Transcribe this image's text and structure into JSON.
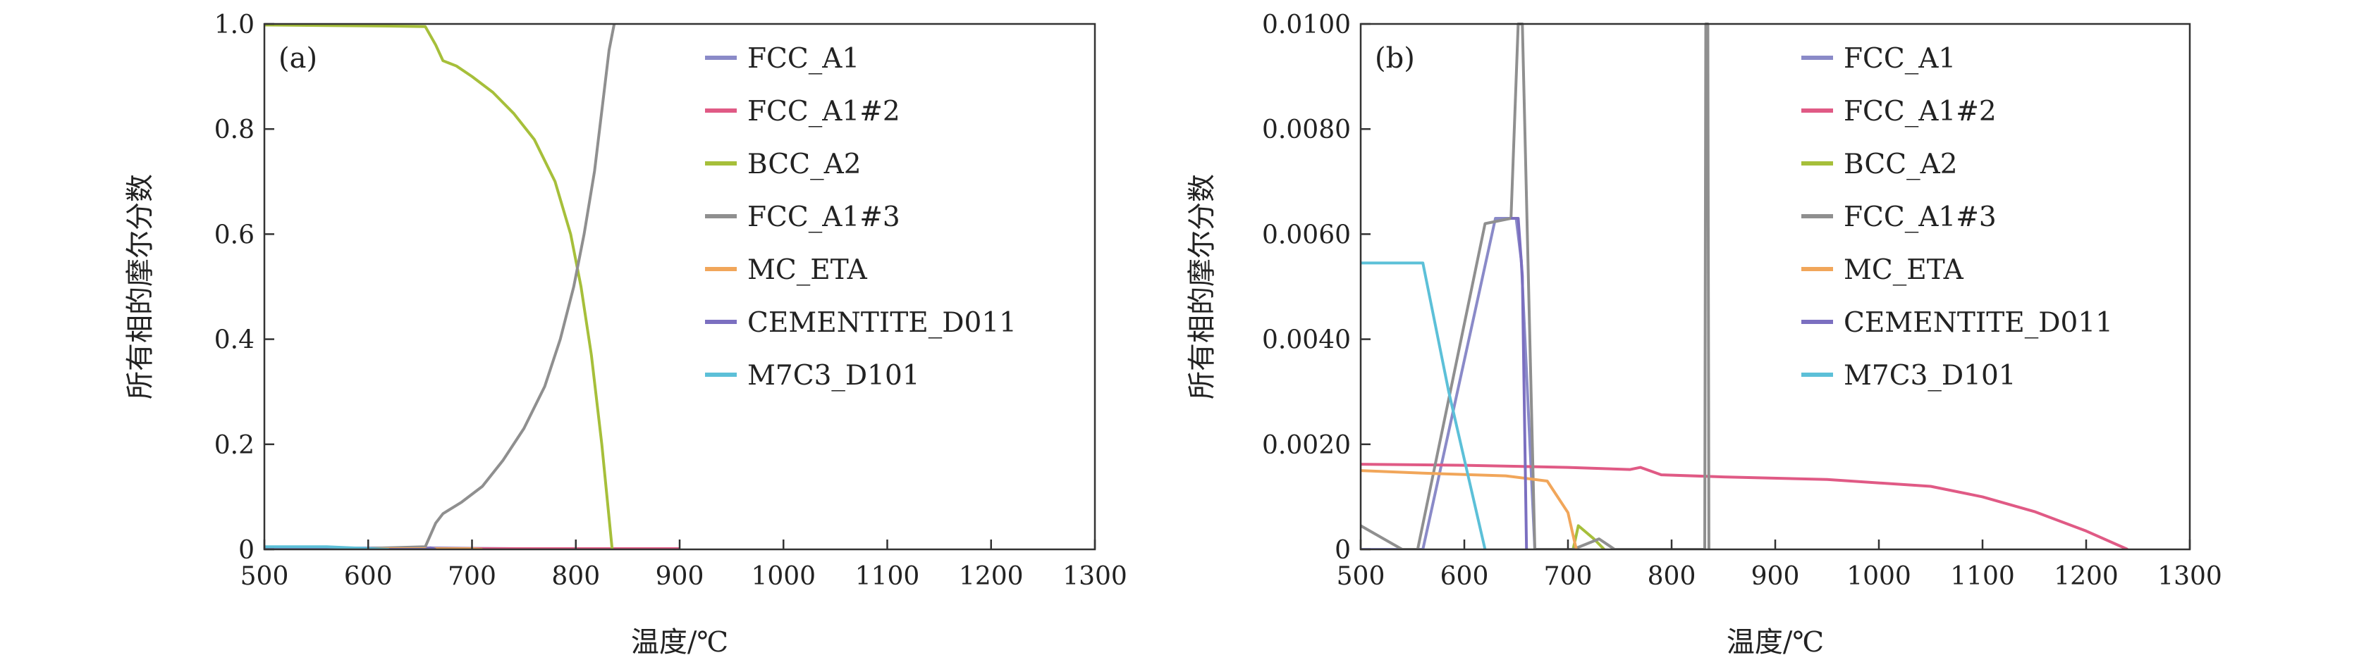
{
  "chart_data": [
    {
      "type": "line",
      "panel_label": "(a)",
      "xlabel": "温度/℃",
      "ylabel": "所有相的摩尔分数",
      "xlim": [
        500,
        1300
      ],
      "ylim": [
        0,
        1.0
      ],
      "x_ticks": [
        500,
        600,
        700,
        800,
        900,
        1000,
        1100,
        1200,
        1300
      ],
      "y_ticks": [
        0,
        0.2,
        0.4,
        0.6,
        0.8,
        1.0
      ],
      "y_tick_labels": [
        "0",
        "0.2",
        "0.4",
        "0.6",
        "0.8",
        "1.0"
      ],
      "grid": false,
      "legend_position": "top-right",
      "series": [
        {
          "name": "FCC_A1",
          "color": "#8a8ac8",
          "points": [
            [
              500,
              0.002
            ],
            [
              650,
              0.003
            ],
            [
              700,
              0.002
            ],
            [
              835,
              0.0
            ]
          ]
        },
        {
          "name": "FCC_A1#2",
          "color": "#e05a85",
          "points": [
            [
              500,
              0.0015
            ],
            [
              700,
              0.0015
            ],
            [
              800,
              0.0014
            ],
            [
              900,
              0.0013
            ]
          ]
        },
        {
          "name": "BCC_A2",
          "color": "#a6bf3a",
          "points": [
            [
              500,
              0.998
            ],
            [
              560,
              0.997
            ],
            [
              620,
              0.996
            ],
            [
              655,
              0.995
            ],
            [
              665,
              0.96
            ],
            [
              672,
              0.93
            ],
            [
              685,
              0.92
            ],
            [
              700,
              0.9
            ],
            [
              720,
              0.87
            ],
            [
              740,
              0.83
            ],
            [
              760,
              0.78
            ],
            [
              780,
              0.7
            ],
            [
              795,
              0.6
            ],
            [
              805,
              0.5
            ],
            [
              815,
              0.37
            ],
            [
              825,
              0.2
            ],
            [
              835,
              0.0
            ]
          ]
        },
        {
          "name": "FCC_A1#3",
          "color": "#8f8f8f",
          "points": [
            [
              500,
              0.0
            ],
            [
              560,
              0.0
            ],
            [
              620,
              0.003
            ],
            [
              655,
              0.005
            ],
            [
              665,
              0.05
            ],
            [
              672,
              0.068
            ],
            [
              690,
              0.09
            ],
            [
              710,
              0.12
            ],
            [
              730,
              0.17
            ],
            [
              750,
              0.23
            ],
            [
              770,
              0.31
            ],
            [
              785,
              0.4
            ],
            [
              798,
              0.5
            ],
            [
              808,
              0.6
            ],
            [
              818,
              0.72
            ],
            [
              826,
              0.85
            ],
            [
              832,
              0.95
            ],
            [
              837,
              1.0
            ]
          ]
        },
        {
          "name": "MC_ETA",
          "color": "#f1a65a",
          "points": [
            [
              500,
              0.0015
            ],
            [
              700,
              0.0013
            ],
            [
              710,
              0.0
            ]
          ]
        },
        {
          "name": "CEMENTITE_D011",
          "color": "#7b6fc0",
          "points": [
            [
              500,
              0.0
            ],
            [
              655,
              0.0
            ],
            [
              660,
              0.003
            ],
            [
              665,
              0.0
            ]
          ]
        },
        {
          "name": "M7C3_D101",
          "color": "#5cc0d8",
          "points": [
            [
              500,
              0.005
            ],
            [
              560,
              0.005
            ],
            [
              620,
              0.0
            ]
          ]
        }
      ]
    },
    {
      "type": "line",
      "panel_label": "(b)",
      "xlabel": "温度/℃",
      "ylabel": "所有相的摩尔分数",
      "xlim": [
        500,
        1300
      ],
      "ylim": [
        0,
        0.01
      ],
      "x_ticks": [
        500,
        600,
        700,
        800,
        900,
        1000,
        1100,
        1200,
        1300
      ],
      "y_ticks": [
        0,
        0.002,
        0.004,
        0.006,
        0.008,
        0.01
      ],
      "y_tick_labels": [
        "0",
        "0.0020",
        "0.0040",
        "0.0060",
        "0.0080",
        "0.0100"
      ],
      "grid": false,
      "legend_position": "top-right",
      "series": [
        {
          "name": "FCC_A1",
          "color": "#8a8ac8",
          "points": [
            [
              500,
              0.0
            ],
            [
              560,
              0.0
            ],
            [
              630,
              0.0063
            ],
            [
              650,
              0.0063
            ],
            [
              655,
              0.0055
            ],
            [
              668,
              0.0
            ]
          ]
        },
        {
          "name": "FCC_A1#2",
          "color": "#e05a85",
          "points": [
            [
              500,
              0.00162
            ],
            [
              600,
              0.0016
            ],
            [
              700,
              0.00156
            ],
            [
              760,
              0.00152
            ],
            [
              770,
              0.00156
            ],
            [
              790,
              0.00142
            ],
            [
              850,
              0.00138
            ],
            [
              950,
              0.00133
            ],
            [
              1050,
              0.0012
            ],
            [
              1100,
              0.001
            ],
            [
              1150,
              0.00072
            ],
            [
              1200,
              0.00035
            ],
            [
              1240,
              0.0
            ]
          ]
        },
        {
          "name": "BCC_A2",
          "color": "#a6bf3a",
          "points": [
            [
              705,
              0.0
            ],
            [
              710,
              0.00045
            ],
            [
              725,
              0.0002
            ],
            [
              735,
              0.0
            ]
          ]
        },
        {
          "name": "FCC_A1#3",
          "color": "#8f8f8f",
          "points": [
            [
              500,
              0.00045
            ],
            [
              540,
              0.0
            ],
            [
              555,
              0.0
            ],
            [
              620,
              0.0062
            ],
            [
              645,
              0.0063
            ],
            [
              652,
              0.01
            ],
            [
              656,
              0.01
            ],
            [
              668,
              0.0
            ],
            [
              705,
              0.0
            ],
            [
              730,
              0.0002
            ],
            [
              745,
              0.0
            ],
            [
              832,
              0.0
            ],
            [
              833,
              0.01
            ],
            [
              835,
              0.01
            ],
            [
              836,
              0.0
            ]
          ]
        },
        {
          "name": "MC_ETA",
          "color": "#f1a65a",
          "points": [
            [
              500,
              0.0015
            ],
            [
              560,
              0.00145
            ],
            [
              640,
              0.0014
            ],
            [
              680,
              0.0013
            ],
            [
              700,
              0.0007
            ],
            [
              708,
              0.0
            ]
          ]
        },
        {
          "name": "CEMENTITE_D011",
          "color": "#7b6fc0",
          "points": [
            [
              645,
              0.0063
            ],
            [
              652,
              0.0063
            ],
            [
              656,
              0.0052
            ],
            [
              660,
              0.0
            ]
          ]
        },
        {
          "name": "M7C3_D101",
          "color": "#5cc0d8",
          "points": [
            [
              500,
              0.00545
            ],
            [
              560,
              0.00545
            ],
            [
              585,
              0.003
            ],
            [
              620,
              0.0
            ]
          ]
        }
      ]
    }
  ]
}
